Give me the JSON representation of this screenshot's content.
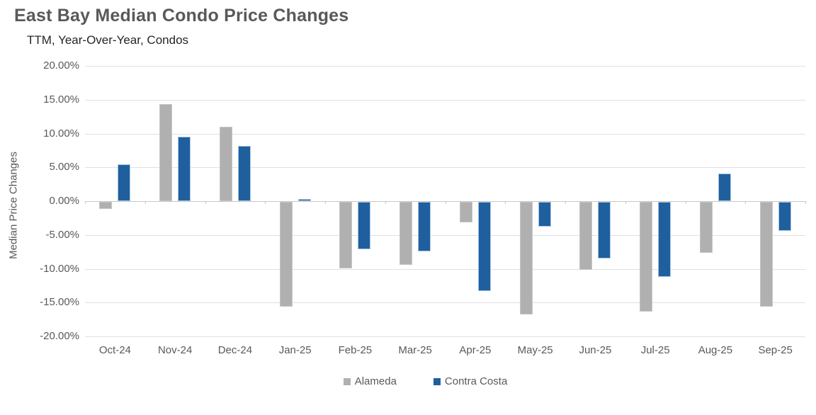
{
  "chart_data": {
    "type": "bar",
    "title": "East Bay Median Condo Price Changes",
    "subtitle": "TTM, Year-Over-Year, Condos",
    "ylabel": "Median Price Changes",
    "xlabel": "",
    "ylim": [
      -20,
      20
    ],
    "grid": true,
    "legend_position": "bottom",
    "value_unit": "percent",
    "ytick_values": [
      20,
      15,
      10,
      5,
      0,
      -5,
      -10,
      -15,
      -20
    ],
    "ytick_labels": [
      "20.00%",
      "15.00%",
      "10.00%",
      "5.00%",
      "0.00%",
      "-5.00%",
      "-10.00%",
      "-15.00%",
      "-20.00%"
    ],
    "categories": [
      "Oct-24",
      "Nov-24",
      "Dec-24",
      "Jan-25",
      "Feb-25",
      "Mar-25",
      "Apr-25",
      "May-25",
      "Jun-25",
      "Jul-25",
      "Aug-25",
      "Sep-25"
    ],
    "series": [
      {
        "name": "Alameda",
        "color": "#B0B0B0",
        "edge_color": "#C6C6C6",
        "values": [
          -1.0,
          14.3,
          11.0,
          -15.5,
          -9.8,
          -9.3,
          -3.0,
          -16.6,
          -10.0,
          -16.2,
          -7.5,
          -15.5
        ]
      },
      {
        "name": "Contra Costa",
        "color": "#1F5F9E",
        "edge_color": "#A9C7E3",
        "values": [
          5.5,
          9.5,
          8.2,
          0.3,
          -7.0,
          -7.3,
          -13.2,
          -3.7,
          -8.4,
          -11.1,
          4.1,
          -4.3
        ]
      }
    ]
  },
  "colors": {
    "title_text": "#595959",
    "subtitle_text": "#262626",
    "axis_text": "#595959",
    "gridline": "#E0E0E0",
    "zero_line": "#C9C9C9",
    "background": "#FFFFFF"
  }
}
